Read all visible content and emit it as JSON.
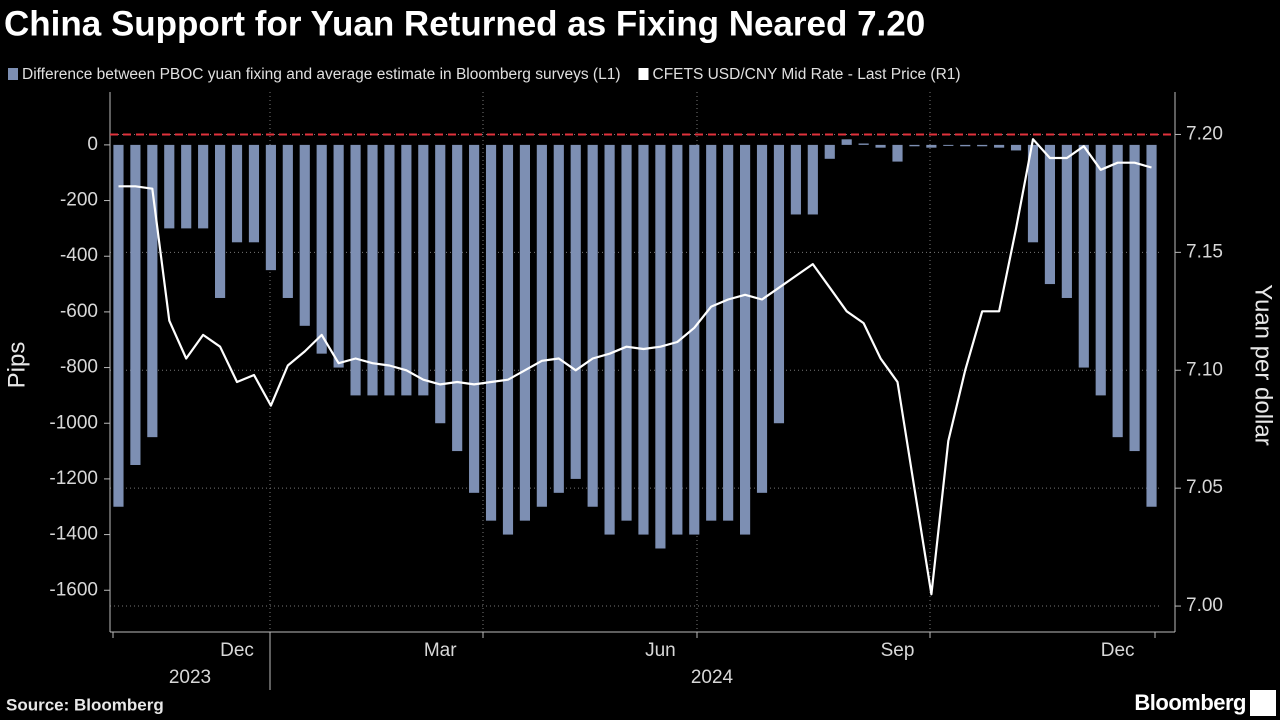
{
  "chart_data": {
    "type": "bar",
    "title": "China Support for Yuan Returned as Fixing Neared 7.20",
    "source": "Source: Bloomberg",
    "logo": "Bloomberg",
    "y_label": "Pips",
    "y2_label": "Yuan per dollar",
    "categories": [
      null,
      null,
      null,
      null,
      null,
      null,
      null,
      "Dec",
      null,
      null,
      null,
      null,
      null,
      null,
      null,
      null,
      null,
      null,
      null,
      "Mar",
      null,
      null,
      null,
      null,
      null,
      null,
      null,
      null,
      null,
      null,
      null,
      null,
      "Jun",
      null,
      null,
      null,
      null,
      null,
      null,
      null,
      null,
      null,
      null,
      null,
      null,
      null,
      "Sep",
      null,
      null,
      null,
      null,
      null,
      null,
      null,
      null,
      null,
      null,
      null,
      null,
      "Dec",
      null,
      null
    ],
    "years": [
      "2023",
      "2024"
    ],
    "series": [
      {
        "name": "Difference between PBOC yuan fixing and average estimate in Bloomberg surveys (L1)",
        "type": "bar",
        "color": "#7d8fb3",
        "values": [
          -1300,
          -1150,
          -1050,
          -300,
          -300,
          -300,
          -550,
          -350,
          -350,
          -450,
          -550,
          -650,
          -750,
          -800,
          -900,
          -900,
          -900,
          -900,
          -900,
          -1000,
          -1100,
          -1250,
          -1350,
          -1400,
          -1350,
          -1300,
          -1250,
          -1200,
          -1300,
          -1400,
          -1350,
          -1400,
          -1450,
          -1400,
          -1400,
          -1350,
          -1350,
          -1400,
          -1250,
          -1000,
          -250,
          -250,
          -50,
          20,
          5,
          -10,
          -60,
          -5,
          -10,
          0,
          -5,
          -5,
          -10,
          -20,
          -350,
          -500,
          -550,
          -800,
          -900,
          -1050,
          -1100,
          -1300
        ]
      },
      {
        "name": "CFETS USD/CNY Mid Rate - Last Price (R1)",
        "type": "line",
        "axis": "y2",
        "color": "#ffffff",
        "values": [
          7.178,
          7.178,
          7.177,
          7.121,
          7.105,
          7.115,
          7.11,
          7.095,
          7.098,
          7.085,
          7.102,
          7.108,
          7.115,
          7.103,
          7.105,
          7.103,
          7.102,
          7.1,
          7.096,
          7.094,
          7.095,
          7.094,
          7.095,
          7.096,
          7.1,
          7.104,
          7.105,
          7.1,
          7.105,
          7.107,
          7.11,
          7.109,
          7.11,
          7.112,
          7.118,
          7.127,
          7.13,
          7.132,
          7.13,
          7.135,
          7.14,
          7.145,
          7.135,
          7.125,
          7.12,
          7.105,
          7.095,
          7.05,
          7.005,
          7.07,
          7.1,
          7.125,
          7.125,
          7.16,
          7.198,
          7.19,
          7.19,
          7.195,
          7.185,
          7.188,
          7.188,
          7.186
        ]
      }
    ],
    "ylim": [
      -1750,
      190
    ],
    "yticks": [
      0,
      -200,
      -400,
      -600,
      -800,
      -1000,
      -1200,
      -1400,
      -1600
    ],
    "y2lim": [
      6.989,
      7.218
    ],
    "y2ticks": [
      {
        "value": 7.0,
        "label": "7.00"
      },
      {
        "value": 7.05,
        "label": "7.05"
      },
      {
        "value": 7.1,
        "label": "7.10"
      },
      {
        "value": 7.15,
        "label": "7.15"
      },
      {
        "value": 7.2,
        "label": "7.20"
      }
    ],
    "reference_line": {
      "axis": "y2",
      "value": 7.2,
      "color": "#e0323c"
    },
    "grid": true
  }
}
